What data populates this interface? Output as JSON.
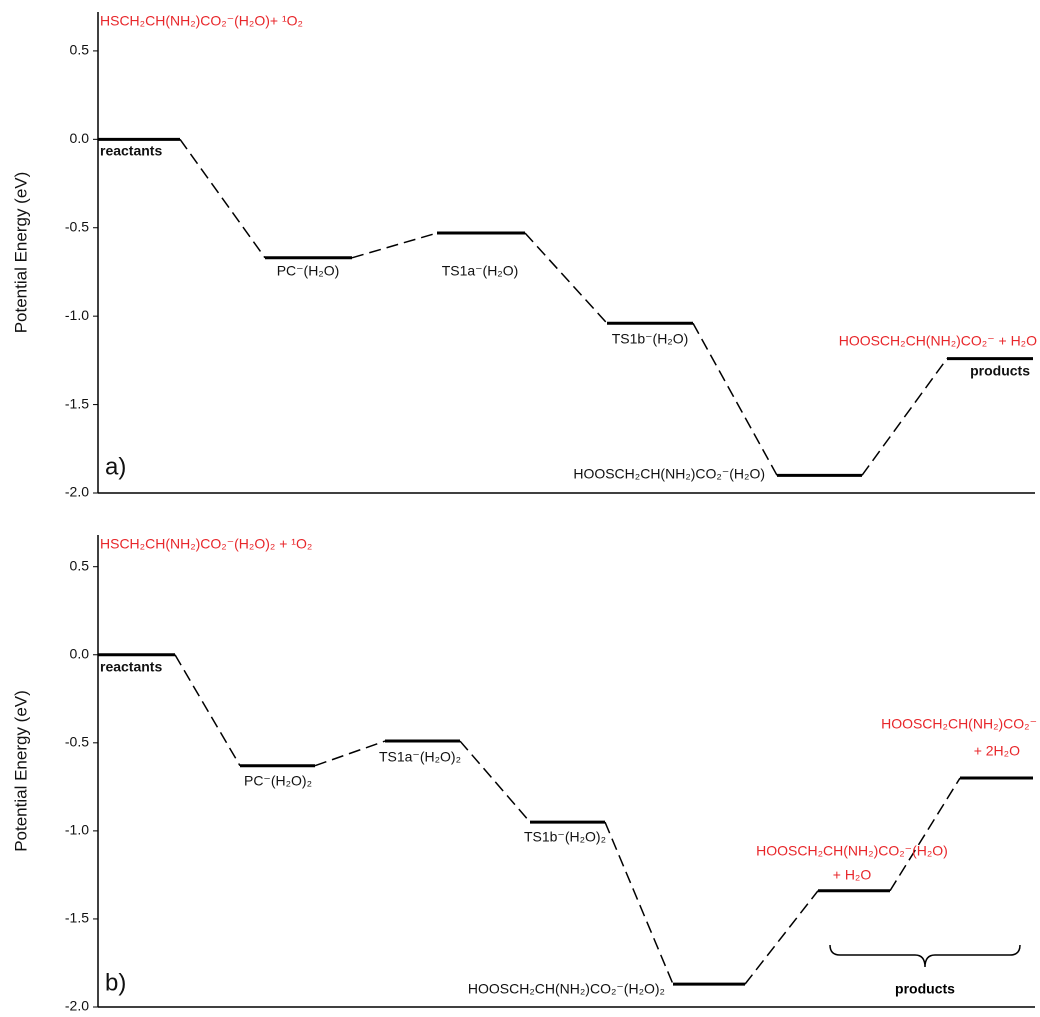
{
  "chart_data": [
    {
      "type": "energy",
      "panel_label": "a)",
      "ylabel": "Potential Energy (eV)",
      "ylim": [
        -2.0,
        0.72
      ],
      "yticks": [
        0.5,
        {
          "value": 0,
          "label": "0.0"
        },
        -0.5,
        {
          "value": -1,
          "label": "-1.0"
        },
        -1.5,
        {
          "value": -2,
          "label": "-2.0"
        }
      ],
      "categories": [
        "reactants",
        "PC⁻(H₂O)",
        "TS1a⁻(H₂O)",
        "TS1b⁻(H₂O)",
        "HOOSCH₂CH(NH₂)CO₂⁻(H₂O)",
        "products"
      ],
      "values": [
        0.0,
        -0.67,
        -0.53,
        -1.04,
        -1.9,
        -1.24
      ],
      "annotations": [
        {
          "text": "HSCH₂CH(NH₂)CO₂⁻(H₂O)+ ¹O₂",
          "color": "#e8262a"
        },
        {
          "text": "HOOSCH₂CH(NH₂)CO₂⁻ + H₂O",
          "color": "#e8262a"
        }
      ]
    },
    {
      "type": "energy",
      "panel_label": "b)",
      "ylabel": "Potential Energy (eV)",
      "ylim": [
        -2.0,
        0.68
      ],
      "yticks": [
        0.5,
        {
          "value": 0,
          "label": "0.0"
        },
        -0.5,
        {
          "value": -1,
          "label": "-1.0"
        },
        -1.5,
        {
          "value": -2,
          "label": "-2.0"
        }
      ],
      "categories": [
        "reactants",
        "PC⁻(H₂O)₂",
        "TS1a⁻(H₂O)₂",
        "TS1b⁻(H₂O)₂",
        "HOOSCH₂CH(NH₂)CO₂⁻(H₂O)₂",
        null,
        null
      ],
      "values": [
        0.0,
        -0.63,
        -0.49,
        -0.95,
        -1.87,
        -1.34,
        -0.7
      ],
      "annotations": [
        {
          "text": "HSCH₂CH(NH₂)CO₂⁻(H₂O)₂ + ¹O₂",
          "color": "#e8262a"
        },
        {
          "text": "HOOSCH₂CH(NH₂)CO₂⁻(H₂O)",
          "color": "#e8262a"
        },
        {
          "text": "+ H₂O",
          "color": "#e8262a"
        },
        {
          "text": "HOOSCH₂CH(NH₂)CO₂⁻",
          "color": "#e8262a"
        },
        {
          "text": "+ 2H₂O",
          "color": "#e8262a"
        },
        {
          "text": "products",
          "color": "#000000"
        }
      ]
    }
  ]
}
